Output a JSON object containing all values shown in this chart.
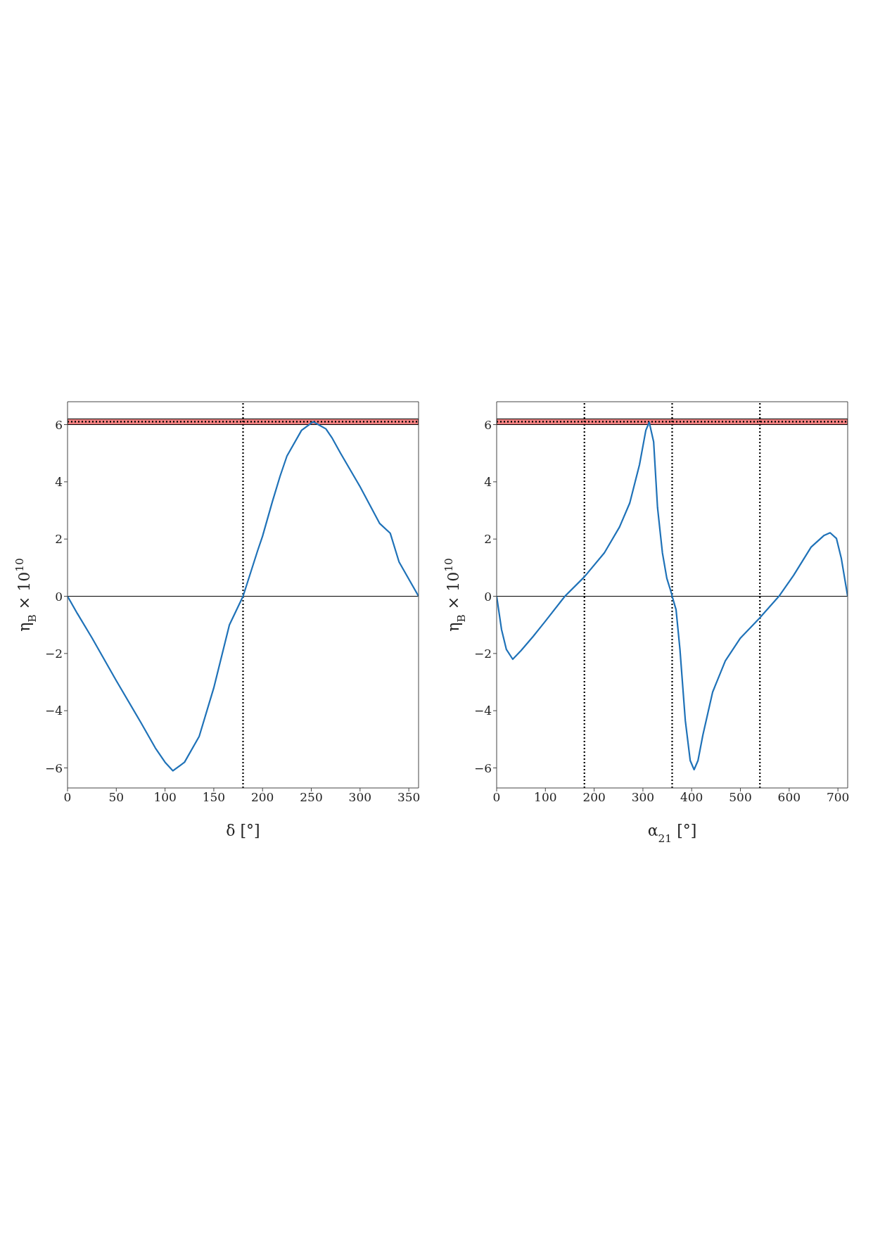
{
  "chart_data": [
    {
      "type": "line",
      "xlabel": "δ   [°]",
      "ylabel": "η$_{B}$ × 10$^{10}$",
      "xlim": [
        0,
        360
      ],
      "xticks": [
        0,
        50,
        100,
        150,
        200,
        250,
        300,
        350
      ],
      "ylim": [
        -6.7,
        6.8
      ],
      "yticks": [
        -6,
        -4,
        -2,
        0,
        2,
        4,
        6
      ],
      "line_style": "solid",
      "x": [
        0,
        10,
        25,
        50,
        75,
        90,
        100,
        108,
        120,
        135,
        150,
        166,
        180,
        195,
        200,
        210,
        218,
        225,
        240,
        252,
        265,
        271,
        280,
        300,
        320,
        331,
        340,
        360
      ],
      "series": [
        {
          "color": "#1f72b8",
          "values": [
            0,
            -0.6,
            -1.45,
            -2.95,
            -4.4,
            -5.3,
            -5.8,
            -6.1,
            -5.8,
            -4.9,
            -3.2,
            -1.0,
            0,
            1.6,
            2.1,
            3.3,
            4.2,
            4.9,
            5.8,
            6.1,
            5.85,
            5.55,
            5.0,
            3.83,
            2.55,
            2.2,
            1.2,
            0
          ]
        }
      ],
      "bands": [
        {
          "axis": "y",
          "from": 6.0,
          "to": 6.2,
          "color": "#f08080"
        }
      ],
      "ref_lines": [
        {
          "axis": "y",
          "value": 6.1,
          "line_style": "dotted",
          "color": "#000000"
        },
        {
          "axis": "y",
          "value": 0,
          "line_style": "solid",
          "color": "#000000"
        },
        {
          "axis": "x",
          "value": 180,
          "line_style": "dotted",
          "color": "#000000"
        }
      ]
    },
    {
      "type": "line",
      "xlabel": "α$_{21}$   [°]",
      "ylabel": "η$_{B}$ × 10$^{10}$",
      "xlim": [
        0,
        720
      ],
      "xticks": [
        0,
        100,
        200,
        300,
        400,
        500,
        600,
        700
      ],
      "ylim": [
        -6.7,
        6.8
      ],
      "yticks": [
        -6,
        -4,
        -2,
        0,
        2,
        4,
        6
      ],
      "line_style": "solid",
      "x": [
        0,
        10,
        20,
        33,
        50,
        75,
        100,
        140,
        180,
        221,
        252,
        273,
        293,
        306,
        313,
        322,
        330,
        340,
        349,
        359,
        360,
        368,
        376,
        387,
        397,
        405,
        413,
        423,
        443,
        469,
        500,
        539,
        579,
        609,
        645,
        671,
        684,
        697,
        707,
        720
      ],
      "series": [
        {
          "color": "#1f72b8",
          "values": [
            0,
            -1.16,
            -1.86,
            -2.2,
            -1.9,
            -1.4,
            -0.87,
            0,
            0.68,
            1.52,
            2.42,
            3.26,
            4.6,
            5.8,
            6.08,
            5.4,
            3.1,
            1.52,
            0.63,
            0.08,
            0,
            -0.47,
            -1.86,
            -4.35,
            -5.74,
            -6.06,
            -5.74,
            -4.85,
            -3.35,
            -2.26,
            -1.46,
            -0.77,
            0,
            0.73,
            1.72,
            2.12,
            2.22,
            2.02,
            1.32,
            0
          ]
        }
      ],
      "bands": [
        {
          "axis": "y",
          "from": 6.0,
          "to": 6.2,
          "color": "#f08080"
        }
      ],
      "ref_lines": [
        {
          "axis": "y",
          "value": 6.1,
          "line_style": "dotted",
          "color": "#000000"
        },
        {
          "axis": "y",
          "value": 0,
          "line_style": "solid",
          "color": "#000000"
        },
        {
          "axis": "x",
          "value": 180,
          "line_style": "dotted",
          "color": "#000000"
        },
        {
          "axis": "x",
          "value": 360,
          "line_style": "dotted",
          "color": "#000000"
        },
        {
          "axis": "x",
          "value": 540,
          "line_style": "dotted",
          "color": "#000000"
        }
      ]
    }
  ]
}
